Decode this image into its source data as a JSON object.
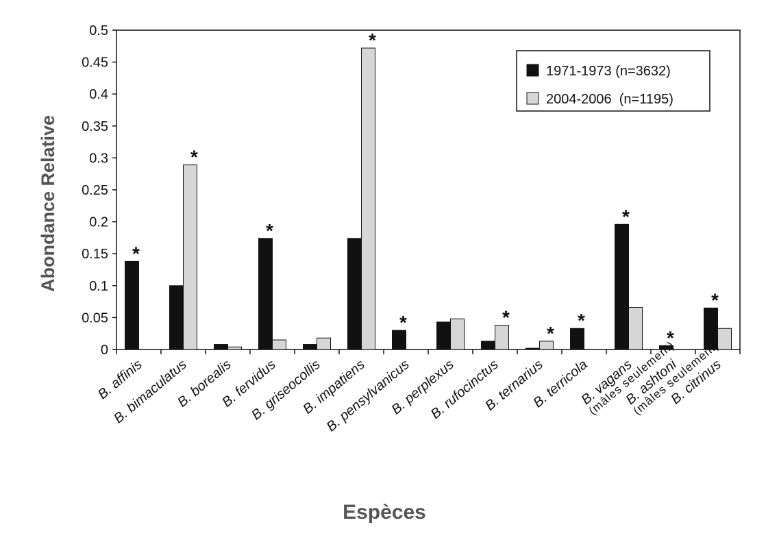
{
  "chart_data": {
    "type": "bar",
    "xlabel": "Espèces",
    "ylabel": "Abondance Relative",
    "ylim": [
      0,
      0.5
    ],
    "yticks": [
      "0",
      "0.05",
      "0.1",
      "0.15",
      "0.2",
      "0.25",
      "0.3",
      "0.35",
      "0.4",
      "0.45",
      "0.5"
    ],
    "grid": false,
    "legend_position": "top-right",
    "categories": [
      {
        "genus": "B.",
        "species": "affinis",
        "note": ""
      },
      {
        "genus": "B.",
        "species": "bimaculatus",
        "note": ""
      },
      {
        "genus": "B.",
        "species": "borealis",
        "note": ""
      },
      {
        "genus": "B.",
        "species": "fervidus",
        "note": ""
      },
      {
        "genus": "B.",
        "species": "griseocollis",
        "note": ""
      },
      {
        "genus": "B.",
        "species": "impatiens",
        "note": ""
      },
      {
        "genus": "B.",
        "species": "pensylvanicus",
        "note": ""
      },
      {
        "genus": "B.",
        "species": "perplexus",
        "note": ""
      },
      {
        "genus": "B.",
        "species": "rufocinctus",
        "note": ""
      },
      {
        "genus": "B.",
        "species": "ternarius",
        "note": ""
      },
      {
        "genus": "B.",
        "species": "terricola",
        "note": ""
      },
      {
        "genus": "B.",
        "species": "vagans",
        "note": ""
      },
      {
        "genus": "B.",
        "species": "ashtoni",
        "note": "(mâles seulement)"
      },
      {
        "genus": "B.",
        "species": "citrinus",
        "note": "(mâles seulement)"
      }
    ],
    "series": [
      {
        "name": "1971-1973 (n=3632)",
        "color": "#111111",
        "values": [
          0.138,
          0.1,
          0.008,
          0.174,
          0.008,
          0.174,
          0.03,
          0.043,
          0.013,
          0.002,
          0.033,
          0.196,
          0.006,
          0.065
        ]
      },
      {
        "name": "2004-2006  (n=1195)",
        "color": "#d6d6d6",
        "values": [
          0,
          0.289,
          0.004,
          0.015,
          0.018,
          0.472,
          0,
          0.048,
          0.038,
          0.013,
          0,
          0.066,
          0,
          0.033
        ]
      }
    ],
    "significant": [
      true,
      true,
      false,
      true,
      false,
      true,
      true,
      false,
      true,
      true,
      true,
      true,
      true,
      true
    ],
    "significance_marker": "*"
  }
}
